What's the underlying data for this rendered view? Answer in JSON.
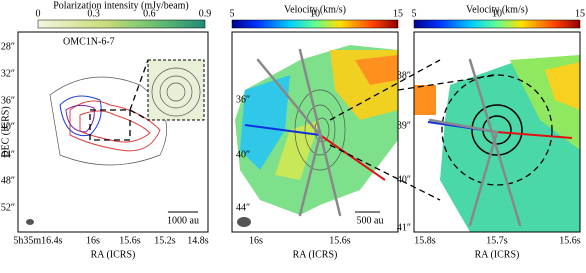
{
  "panel1": {
    "colorbar": {
      "title": "Polarization intensity (mJy/beam)",
      "ticks": [
        "0",
        "0.3",
        "0.6",
        "0.9"
      ]
    },
    "source_label": "OMC1N-6-7",
    "y_title": "DEC (ICRS)",
    "x_title": "RA (ICRS)",
    "y_ticks": [
      "28″",
      "32″",
      "36″",
      "40″",
      "44″",
      "48″",
      "-5°20′52″"
    ],
    "x_ticks": [
      "5h35m16.4s",
      "16s",
      "15.6s",
      "15.2s",
      "14.8s"
    ],
    "scale_bar": "1000 au"
  },
  "panel2": {
    "colorbar": {
      "title": "Velocity (km/s)",
      "ticks": [
        "5",
        "10",
        "15"
      ]
    },
    "x_title": "RA (ICRS)",
    "y_ticks": [
      "36″",
      "40″",
      "44″"
    ],
    "x_ticks": [
      "16s",
      "15.6s"
    ],
    "scale_bar": "500 au"
  },
  "panel3": {
    "colorbar": {
      "title": "Velocity (km/s)",
      "ticks": [
        "5",
        "10",
        "15"
      ]
    },
    "x_title": "RA (ICRS)",
    "y_ticks": [
      "38″",
      "39″",
      "40″",
      "41″"
    ],
    "x_ticks": [
      "15.8s",
      "15.7s",
      "15.6s"
    ]
  }
}
